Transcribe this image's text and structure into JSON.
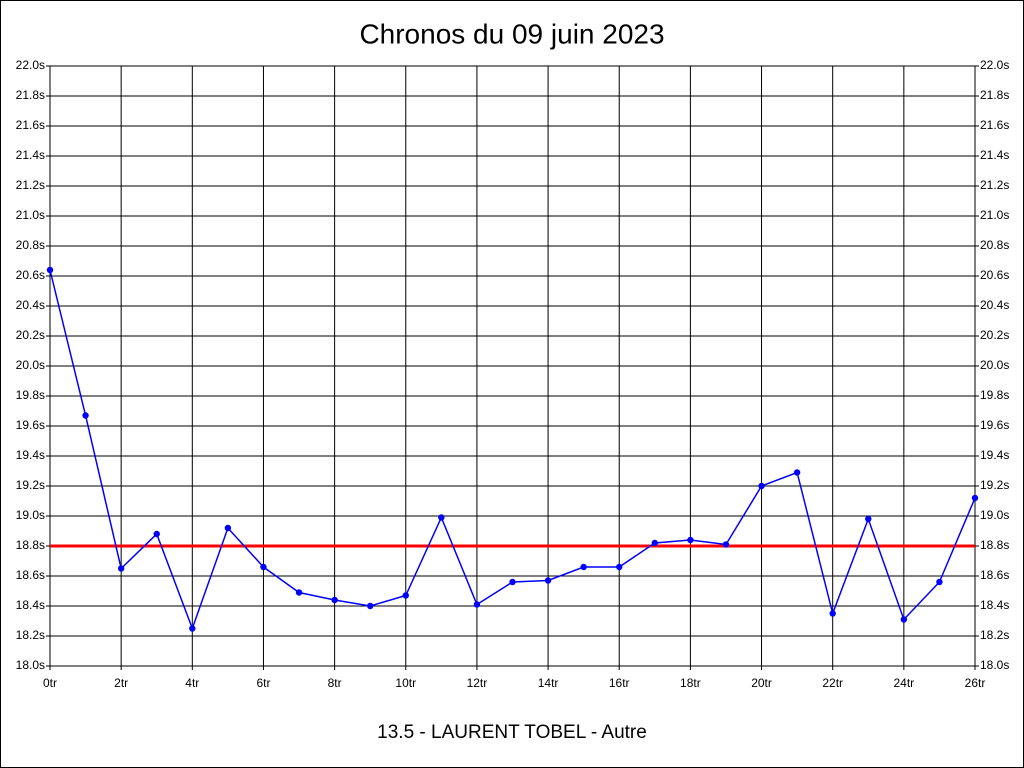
{
  "chart_data": {
    "type": "line",
    "title": "Chronos du 09 juin 2023",
    "subtitle": "13.5 - LAURENT TOBEL - Autre",
    "x": [
      0,
      1,
      2,
      3,
      4,
      5,
      6,
      7,
      8,
      9,
      10,
      11,
      12,
      13,
      14,
      15,
      16,
      17,
      18,
      19,
      20,
      21,
      22,
      23,
      24,
      25,
      26
    ],
    "series": [
      {
        "color": "#0000ff",
        "values": [
          20.64,
          19.67,
          18.65,
          18.88,
          18.25,
          18.92,
          18.66,
          18.49,
          18.44,
          18.4,
          18.47,
          18.99,
          18.41,
          18.56,
          18.57,
          18.66,
          18.66,
          18.82,
          18.84,
          18.81,
          19.2,
          19.29,
          18.35,
          18.98,
          18.31,
          18.56,
          19.12
        ]
      }
    ],
    "reference_line": {
      "value": 18.8,
      "color": "#ff0000"
    },
    "xlim": [
      0,
      26
    ],
    "xticks": [
      {
        "value": 0,
        "label": "0tr"
      },
      {
        "value": 2,
        "label": "2tr"
      },
      {
        "value": 4,
        "label": "4tr"
      },
      {
        "value": 6,
        "label": "6tr"
      },
      {
        "value": 8,
        "label": "8tr"
      },
      {
        "value": 10,
        "label": "10tr"
      },
      {
        "value": 12,
        "label": "12tr"
      },
      {
        "value": 14,
        "label": "14tr"
      },
      {
        "value": 16,
        "label": "16tr"
      },
      {
        "value": 18,
        "label": "18tr"
      },
      {
        "value": 20,
        "label": "20tr"
      },
      {
        "value": 22,
        "label": "22tr"
      },
      {
        "value": 24,
        "label": "24tr"
      },
      {
        "value": 26,
        "label": "26tr"
      }
    ],
    "ylim": [
      18.0,
      22.0
    ],
    "yticks": [
      {
        "value": 18.0,
        "label": "18.0s"
      },
      {
        "value": 18.2,
        "label": "18.2s"
      },
      {
        "value": 18.4,
        "label": "18.4s"
      },
      {
        "value": 18.6,
        "label": "18.6s"
      },
      {
        "value": 18.8,
        "label": "18.8s"
      },
      {
        "value": 19.0,
        "label": "19.0s"
      },
      {
        "value": 19.2,
        "label": "19.2s"
      },
      {
        "value": 19.4,
        "label": "19.4s"
      },
      {
        "value": 19.6,
        "label": "19.6s"
      },
      {
        "value": 19.8,
        "label": "19.8s"
      },
      {
        "value": 20.0,
        "label": "20.0s"
      },
      {
        "value": 20.2,
        "label": "20.2s"
      },
      {
        "value": 20.4,
        "label": "20.4s"
      },
      {
        "value": 20.6,
        "label": "20.6s"
      },
      {
        "value": 20.8,
        "label": "20.8s"
      },
      {
        "value": 21.0,
        "label": "21.0s"
      },
      {
        "value": 21.2,
        "label": "21.2s"
      },
      {
        "value": 21.4,
        "label": "21.4s"
      },
      {
        "value": 21.6,
        "label": "21.6s"
      },
      {
        "value": 21.8,
        "label": "21.8s"
      },
      {
        "value": 22.0,
        "label": "22.0s"
      }
    ],
    "grid": true
  }
}
